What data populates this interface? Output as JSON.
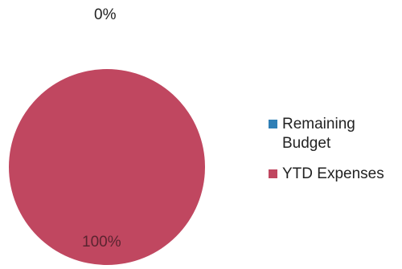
{
  "chart_data": {
    "type": "pie",
    "categories": [
      "Remaining Budget",
      "YTD Expenses"
    ],
    "values": [
      0,
      100
    ],
    "data_labels": [
      "0%",
      "100%"
    ],
    "colors": [
      "#2f7fb6",
      "#c04760"
    ],
    "legend_position": "right"
  }
}
